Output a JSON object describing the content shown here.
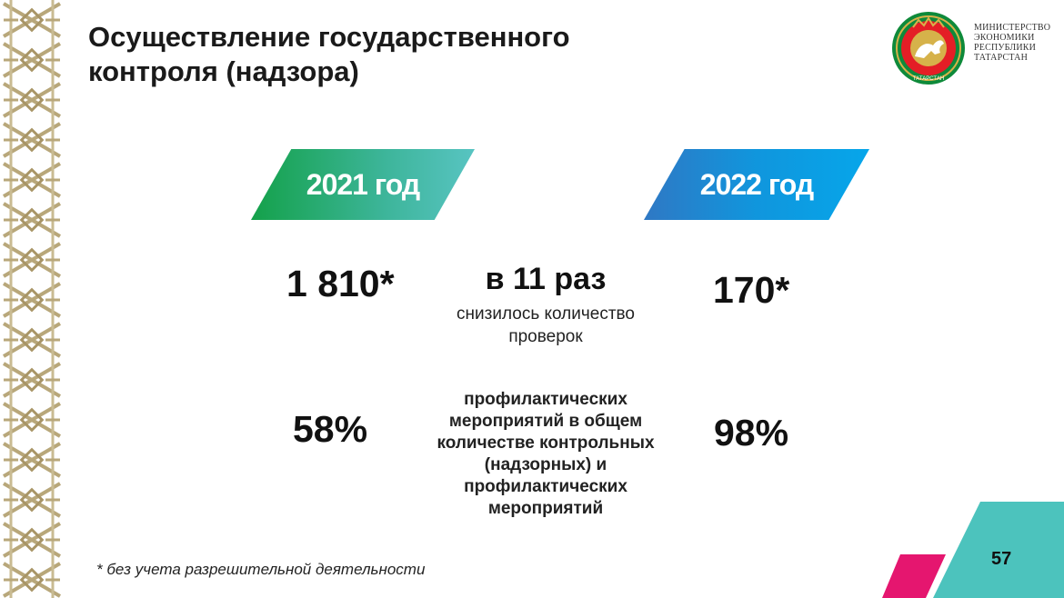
{
  "title": {
    "line1": "Осуществление государственного",
    "line2": "контроля (надзора)"
  },
  "ministry": {
    "line1": "МИНИСТЕРСТВО",
    "line2": "ЭКОНОМИКИ",
    "line3": "РЕСПУБЛИКИ",
    "line4": "ТАТАРСТАН"
  },
  "emblem": {
    "icon": "tatarstan-emblem-icon",
    "text": "ТАТАРСТАН",
    "colors": {
      "ring": "#0e8a3a",
      "field": "#e41e26",
      "gold": "#d6b24a"
    }
  },
  "years": {
    "left": "2021 год",
    "right": "2022 год"
  },
  "inspections": {
    "value_2021": "1 810*",
    "value_2022": "170*",
    "change": "в 11 раз",
    "description_line1": "снизилось количество",
    "description_line2": "проверок"
  },
  "preventive": {
    "value_2021": "58%",
    "value_2022": "98%",
    "description": [
      "профилактических",
      "мероприятий в общем",
      "количестве контрольных",
      "(надзорных) и",
      "профилактических",
      "мероприятий"
    ]
  },
  "footnote": "* без учета разрешительной деятельности",
  "page_number": "57",
  "colors": {
    "green_banner": "#14a14a",
    "blue_banner": "#1096dd",
    "accent_pink": "#e5166f",
    "accent_teal": "#4cc3bd"
  }
}
